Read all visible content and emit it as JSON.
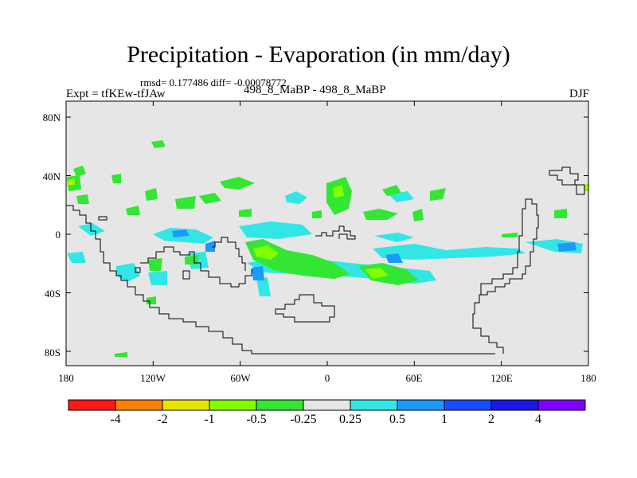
{
  "chart_data": {
    "type": "heatmap",
    "title": "Precipitation - Evaporation (in mm/day)",
    "stats_line": "rmsd= 0.177486 diff= -0.00078772",
    "experiment_label": "Expt = tfKEw-tfJAw",
    "center_subtitle": "498_8_MaBP - 498_8_MaBP",
    "season_label": "DJF",
    "xlabel": "",
    "ylabel": "",
    "x_ticks": [
      "180",
      "120W",
      "60W",
      "0",
      "60E",
      "120E",
      "180"
    ],
    "y_ticks": [
      "80N",
      "40N",
      "0",
      "40S",
      "80S"
    ],
    "xlim": [
      -180,
      180
    ],
    "ylim": [
      -90,
      90
    ],
    "colorbar": {
      "labels": [
        "-4",
        "-2",
        "-1",
        "-0.5",
        "-0.25",
        "0.25",
        "0.5",
        "1",
        "2",
        "4"
      ],
      "colors": [
        "#ff1a1a",
        "#ff8000",
        "#e6e600",
        "#80ff00",
        "#33e633",
        "#e6e6e6",
        "#33e6e6",
        "#1a99ff",
        "#1a4dff",
        "#1a1ae6",
        "#8000ff"
      ]
    },
    "background_color": "#e6e6e6",
    "grid": false
  }
}
